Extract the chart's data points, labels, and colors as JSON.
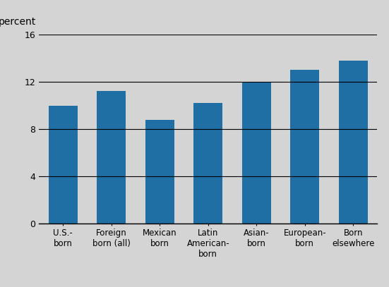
{
  "categories": [
    "U.S.-\nborn",
    "Foreign\nborn (all)",
    "Mexican\nborn",
    "Latin\nAmerican-\nborn",
    "Asian-\nborn",
    "European-\nborn",
    "Born\nelsewhere"
  ],
  "values": [
    10.0,
    11.2,
    8.8,
    10.2,
    12.0,
    13.0,
    13.8
  ],
  "bar_color": "#1f6fa5",
  "background_color": "#d4d4d4",
  "ylabel": "percent",
  "ylim": [
    0,
    16
  ],
  "yticks": [
    0,
    4,
    8,
    12,
    16
  ],
  "bar_width": 0.6,
  "ylabel_fontsize": 10,
  "tick_fontsize": 9,
  "xlabel_fontsize": 8.5
}
